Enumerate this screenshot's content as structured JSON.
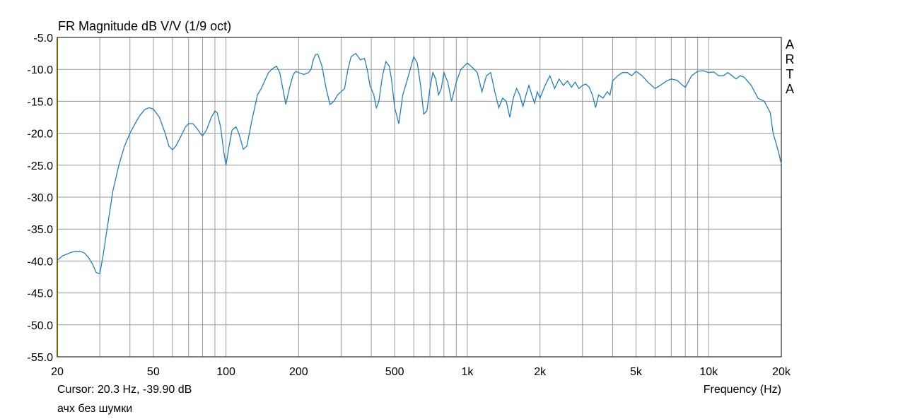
{
  "chart_data": {
    "type": "line",
    "title": "FR Magnitude dB V/V (1/9 oct)",
    "xlabel": "Frequency (Hz)",
    "ylabel": "",
    "x_scale": "log",
    "xlim": [
      20,
      20000
    ],
    "ylim": [
      -55,
      -5
    ],
    "grid": true,
    "y_ticks": [
      -5,
      -10,
      -15,
      -20,
      -25,
      -30,
      -35,
      -40,
      -45,
      -50,
      -55
    ],
    "y_tick_labels": [
      "-5.0",
      "-10.0",
      "-15.0",
      "-20.0",
      "-25.0",
      "-30.0",
      "-35.0",
      "-40.0",
      "-45.0",
      "-50.0",
      "-55.0"
    ],
    "x_ticks": [
      20,
      50,
      100,
      200,
      500,
      1000,
      2000,
      5000,
      10000,
      20000
    ],
    "x_tick_labels": [
      "20",
      "50",
      "100",
      "200",
      "500",
      "1k",
      "2k",
      "5k",
      "10k",
      "20k"
    ],
    "x_minor_gridlines": [
      30,
      40,
      60,
      70,
      80,
      90,
      300,
      400,
      600,
      700,
      800,
      900,
      3000,
      4000,
      6000,
      7000,
      8000,
      9000
    ],
    "line_color": "#1f7fc4",
    "series": [
      {
        "x": [
          20,
          21,
          22,
          23,
          24,
          25,
          26,
          27,
          28,
          29,
          30,
          31,
          32,
          34,
          36,
          38,
          40,
          42,
          44,
          46,
          48,
          50,
          53,
          56,
          58,
          60,
          62,
          65,
          68,
          70,
          73,
          76,
          79,
          80,
          83,
          87,
          90,
          92,
          95,
          98,
          100,
          103,
          106,
          110,
          113,
          118,
          122,
          128,
          135,
          140,
          150,
          157,
          162,
          167,
          172,
          177,
          183,
          190,
          195,
          200,
          210,
          220,
          225,
          230,
          235,
          240,
          250,
          260,
          270,
          280,
          290,
          300,
          310,
          320,
          330,
          345,
          360,
          375,
          385,
          395,
          410,
          420,
          430,
          445,
          460,
          475,
          485,
          500,
          520,
          540,
          560,
          580,
          600,
          620,
          640,
          660,
          680,
          700,
          720,
          740,
          760,
          780,
          800,
          830,
          860,
          900,
          940,
          970,
          1000,
          1050,
          1100,
          1150,
          1200,
          1250,
          1300,
          1350,
          1400,
          1450,
          1500,
          1550,
          1600,
          1650,
          1700,
          1750,
          1800,
          1850,
          1900,
          1950,
          2000,
          2100,
          2200,
          2300,
          2400,
          2500,
          2600,
          2700,
          2800,
          2900,
          3000,
          3100,
          3200,
          3300,
          3400,
          3500,
          3650,
          3800,
          3900,
          4000,
          4200,
          4400,
          4600,
          4800,
          5000,
          5300,
          5600,
          6000,
          6300,
          6700,
          7000,
          7400,
          7800,
          8000,
          8500,
          9000,
          9500,
          10000,
          10500,
          11000,
          11500,
          12000,
          12500,
          13000,
          13500,
          14000,
          15000,
          16000,
          17000,
          18000,
          18500,
          19000,
          19500,
          20000
        ],
        "values": [
          -39.9,
          -39.2,
          -38.9,
          -38.6,
          -38.5,
          -38.5,
          -38.8,
          -39.5,
          -40.5,
          -41.8,
          -42.0,
          -39.0,
          -35.5,
          -29.0,
          -25.0,
          -22.0,
          -20.0,
          -18.5,
          -17.2,
          -16.3,
          -16.0,
          -16.2,
          -17.5,
          -20.0,
          -22.0,
          -22.6,
          -22.0,
          -20.5,
          -19.0,
          -18.5,
          -18.5,
          -19.3,
          -20.2,
          -20.4,
          -19.5,
          -17.5,
          -16.5,
          -16.8,
          -19.0,
          -23.0,
          -25.0,
          -22.0,
          -19.5,
          -19.0,
          -20.0,
          -22.5,
          -22.0,
          -18.0,
          -14.0,
          -13.0,
          -10.5,
          -9.8,
          -9.5,
          -10.5,
          -13.0,
          -15.5,
          -13.0,
          -10.8,
          -10.3,
          -10.5,
          -10.8,
          -10.5,
          -10.0,
          -8.5,
          -7.7,
          -7.6,
          -9.5,
          -13.0,
          -15.5,
          -15.0,
          -14.0,
          -13.5,
          -13.0,
          -10.0,
          -8.0,
          -7.5,
          -8.5,
          -8.3,
          -10.0,
          -12.5,
          -14.0,
          -16.0,
          -15.0,
          -11.0,
          -8.8,
          -9.5,
          -11.5,
          -16.0,
          -18.5,
          -14.0,
          -12.0,
          -10.0,
          -8.0,
          -9.0,
          -12.5,
          -17.0,
          -16.5,
          -13.0,
          -10.5,
          -11.5,
          -14.0,
          -13.0,
          -10.5,
          -12.0,
          -15.0,
          -12.0,
          -10.0,
          -9.5,
          -9.0,
          -9.7,
          -10.5,
          -13.5,
          -11.0,
          -10.5,
          -13.5,
          -16.0,
          -14.5,
          -15.0,
          -17.5,
          -14.5,
          -13.0,
          -14.0,
          -15.8,
          -14.0,
          -12.5,
          -14.0,
          -15.3,
          -13.5,
          -14.5,
          -12.5,
          -11.0,
          -13.0,
          -11.5,
          -12.5,
          -11.8,
          -12.8,
          -12.0,
          -13.0,
          -12.5,
          -12.3,
          -12.8,
          -14.0,
          -16.0,
          -14.0,
          -14.5,
          -13.5,
          -14.0,
          -11.8,
          -11.0,
          -10.5,
          -10.5,
          -11.0,
          -10.3,
          -11.0,
          -12.0,
          -13.0,
          -12.5,
          -11.8,
          -11.5,
          -11.7,
          -12.5,
          -12.8,
          -11.0,
          -10.3,
          -10.2,
          -10.5,
          -10.4,
          -11.0,
          -11.0,
          -10.5,
          -11.0,
          -11.5,
          -11.0,
          -11.2,
          -12.5,
          -14.5,
          -15.0,
          -16.8,
          -20.0,
          -21.5,
          -23.0,
          -24.8
        ]
      }
    ]
  },
  "brand_letters": [
    "A",
    "R",
    "T",
    "A"
  ],
  "cursor_text": "Cursor: 20.3 Hz, -39.90 dB",
  "note_text": "ачх без шумки"
}
